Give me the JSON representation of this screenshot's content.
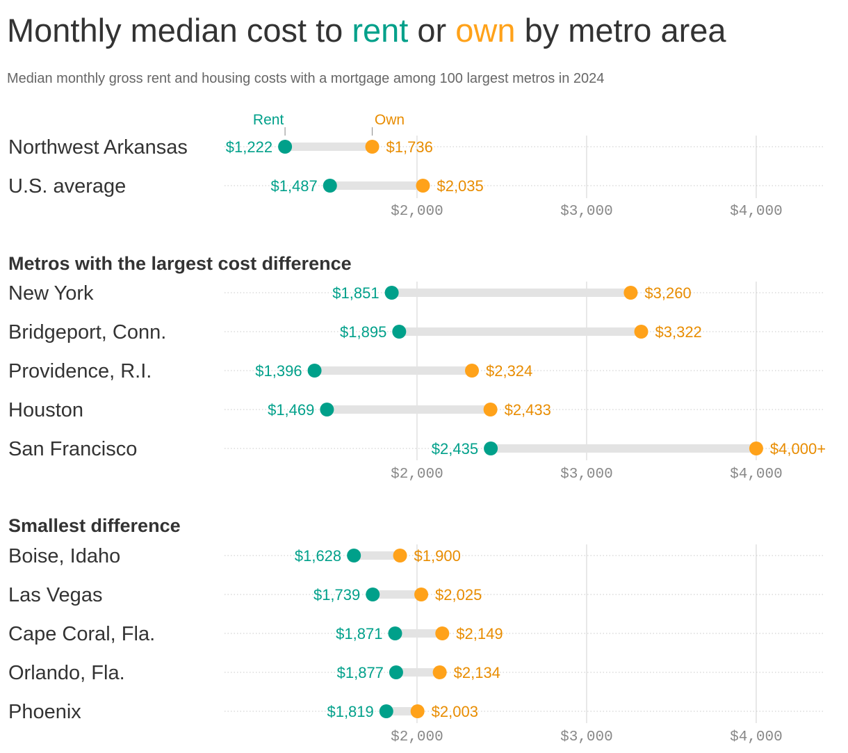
{
  "title": {
    "part1": "Monthly median cost to ",
    "rent_word": "rent",
    "part2": " or ",
    "own_word": "own",
    "part3": " by metro area"
  },
  "subtitle": "Median monthly gross rent and housing costs with a mortgage among 100 largest metros in 2024",
  "colors": {
    "rent": "#00a08a",
    "own": "#ffa21a",
    "rent_text": "#00a08a",
    "own_text": "#e88c00",
    "bar": "#e3e3e3",
    "grid": "#e0e0e0"
  },
  "chart_data": {
    "type": "dumbbell",
    "legend": {
      "rent": "Rent",
      "own": "Own",
      "placement": "above first row"
    },
    "xlim": [
      865,
      4406
    ],
    "xticks": [
      {
        "value": 2000,
        "label": "$2,000"
      },
      {
        "value": 3000,
        "label": "$3,000"
      },
      {
        "value": 4000,
        "label": "$4,000"
      }
    ],
    "grid": true,
    "panels": [
      {
        "heading": "",
        "rows": [
          {
            "name": "Northwest Arkansas",
            "rent": 1222,
            "rent_label": "$1,222",
            "own": 1736,
            "own_label": "$1,736"
          },
          {
            "name": "U.S. average",
            "rent": 1487,
            "rent_label": "$1,487",
            "own": 2035,
            "own_label": "$2,035"
          }
        ]
      },
      {
        "heading": "Metros with the largest cost difference",
        "rows": [
          {
            "name": "New York",
            "rent": 1851,
            "rent_label": "$1,851",
            "own": 3260,
            "own_label": "$3,260"
          },
          {
            "name": "Bridgeport, Conn.",
            "rent": 1895,
            "rent_label": "$1,895",
            "own": 3322,
            "own_label": "$3,322"
          },
          {
            "name": "Providence, R.I.",
            "rent": 1396,
            "rent_label": "$1,396",
            "own": 2324,
            "own_label": "$2,324"
          },
          {
            "name": "Houston",
            "rent": 1469,
            "rent_label": "$1,469",
            "own": 2433,
            "own_label": "$2,433"
          },
          {
            "name": "San Francisco",
            "rent": 2435,
            "rent_label": "$2,435",
            "own": 4000,
            "own_label": "$4,000+"
          }
        ]
      },
      {
        "heading": "Smallest difference",
        "rows": [
          {
            "name": "Boise, Idaho",
            "rent": 1628,
            "rent_label": "$1,628",
            "own": 1900,
            "own_label": "$1,900"
          },
          {
            "name": "Las Vegas",
            "rent": 1739,
            "rent_label": "$1,739",
            "own": 2025,
            "own_label": "$2,025"
          },
          {
            "name": "Cape Coral, Fla.",
            "rent": 1871,
            "rent_label": "$1,871",
            "own": 2149,
            "own_label": "$2,149"
          },
          {
            "name": "Orlando, Fla.",
            "rent": 1877,
            "rent_label": "$1,877",
            "own": 2134,
            "own_label": "$2,134"
          },
          {
            "name": "Phoenix",
            "rent": 1819,
            "rent_label": "$1,819",
            "own": 2003,
            "own_label": "$2,003"
          }
        ]
      }
    ]
  }
}
